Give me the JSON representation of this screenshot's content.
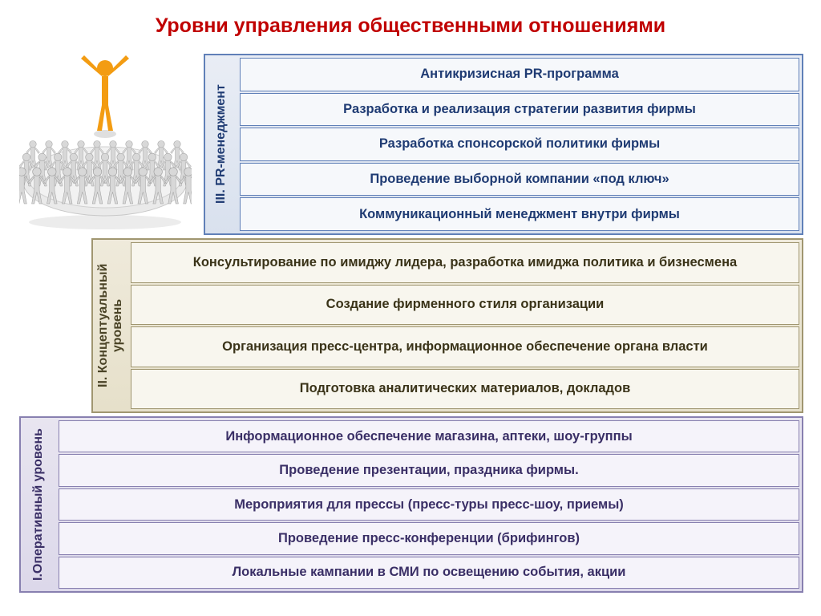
{
  "title": "Уровни управления общественными отношениями",
  "title_color": "#c00000",
  "title_fontsize": 25,
  "background_color": "#ffffff",
  "illustration": {
    "leader_color": "#f39c12",
    "leader_shadow": "#b0b0b0",
    "crowd_color": "#d8d8d8",
    "crowd_stroke": "#a0a0a0",
    "disc_fill": "#e8e8e8",
    "disc_stroke": "#c0c0c0"
  },
  "levels": [
    {
      "id": "level3",
      "label": "III. PR-менеджмент",
      "border_color": "#6080b8",
      "bg_gradient": [
        "#e9edf5",
        "#d9e1ee"
      ],
      "item_bg": "#f6f8fb",
      "text_color": "#1f3b73",
      "items": [
        "Антикризисная PR-программа",
        "Разработка и реализация стратегии развития фирмы",
        "Разработка спонсорской политики фирмы",
        "Проведение выборной компании «под ключ»",
        "Коммуникационный менеджмент внутри фирмы"
      ]
    },
    {
      "id": "level2",
      "label": "II. Концептуальный уровень",
      "border_color": "#a09670",
      "bg_gradient": [
        "#efeadb",
        "#e6e0ca"
      ],
      "item_bg": "#f8f6ee",
      "text_color": "#3a3318",
      "items": [
        "Консультирование по имиджу лидера, разработка имиджа политика и бизнесмена",
        "Создание фирменного стиля организации",
        "Организация пресс-центра, информационное обеспечение органа власти",
        "Подготовка аналитических материалов, докладов"
      ]
    },
    {
      "id": "level1",
      "label": "I.Оперативный уровень",
      "border_color": "#8880b0",
      "bg_gradient": [
        "#e8e5f0",
        "#dcd8ea"
      ],
      "item_bg": "#f5f3fa",
      "text_color": "#3a2f66",
      "items": [
        "Информационное обеспечение магазина, аптеки, шоу-группы",
        "Проведение презентации, праздника фирмы.",
        "Мероприятия для прессы (пресс-туры пресс-шоу, приемы)",
        "Проведение пресс-конференции (брифингов)",
        "Локальные кампании в СМИ по освещению события, акции"
      ]
    }
  ]
}
